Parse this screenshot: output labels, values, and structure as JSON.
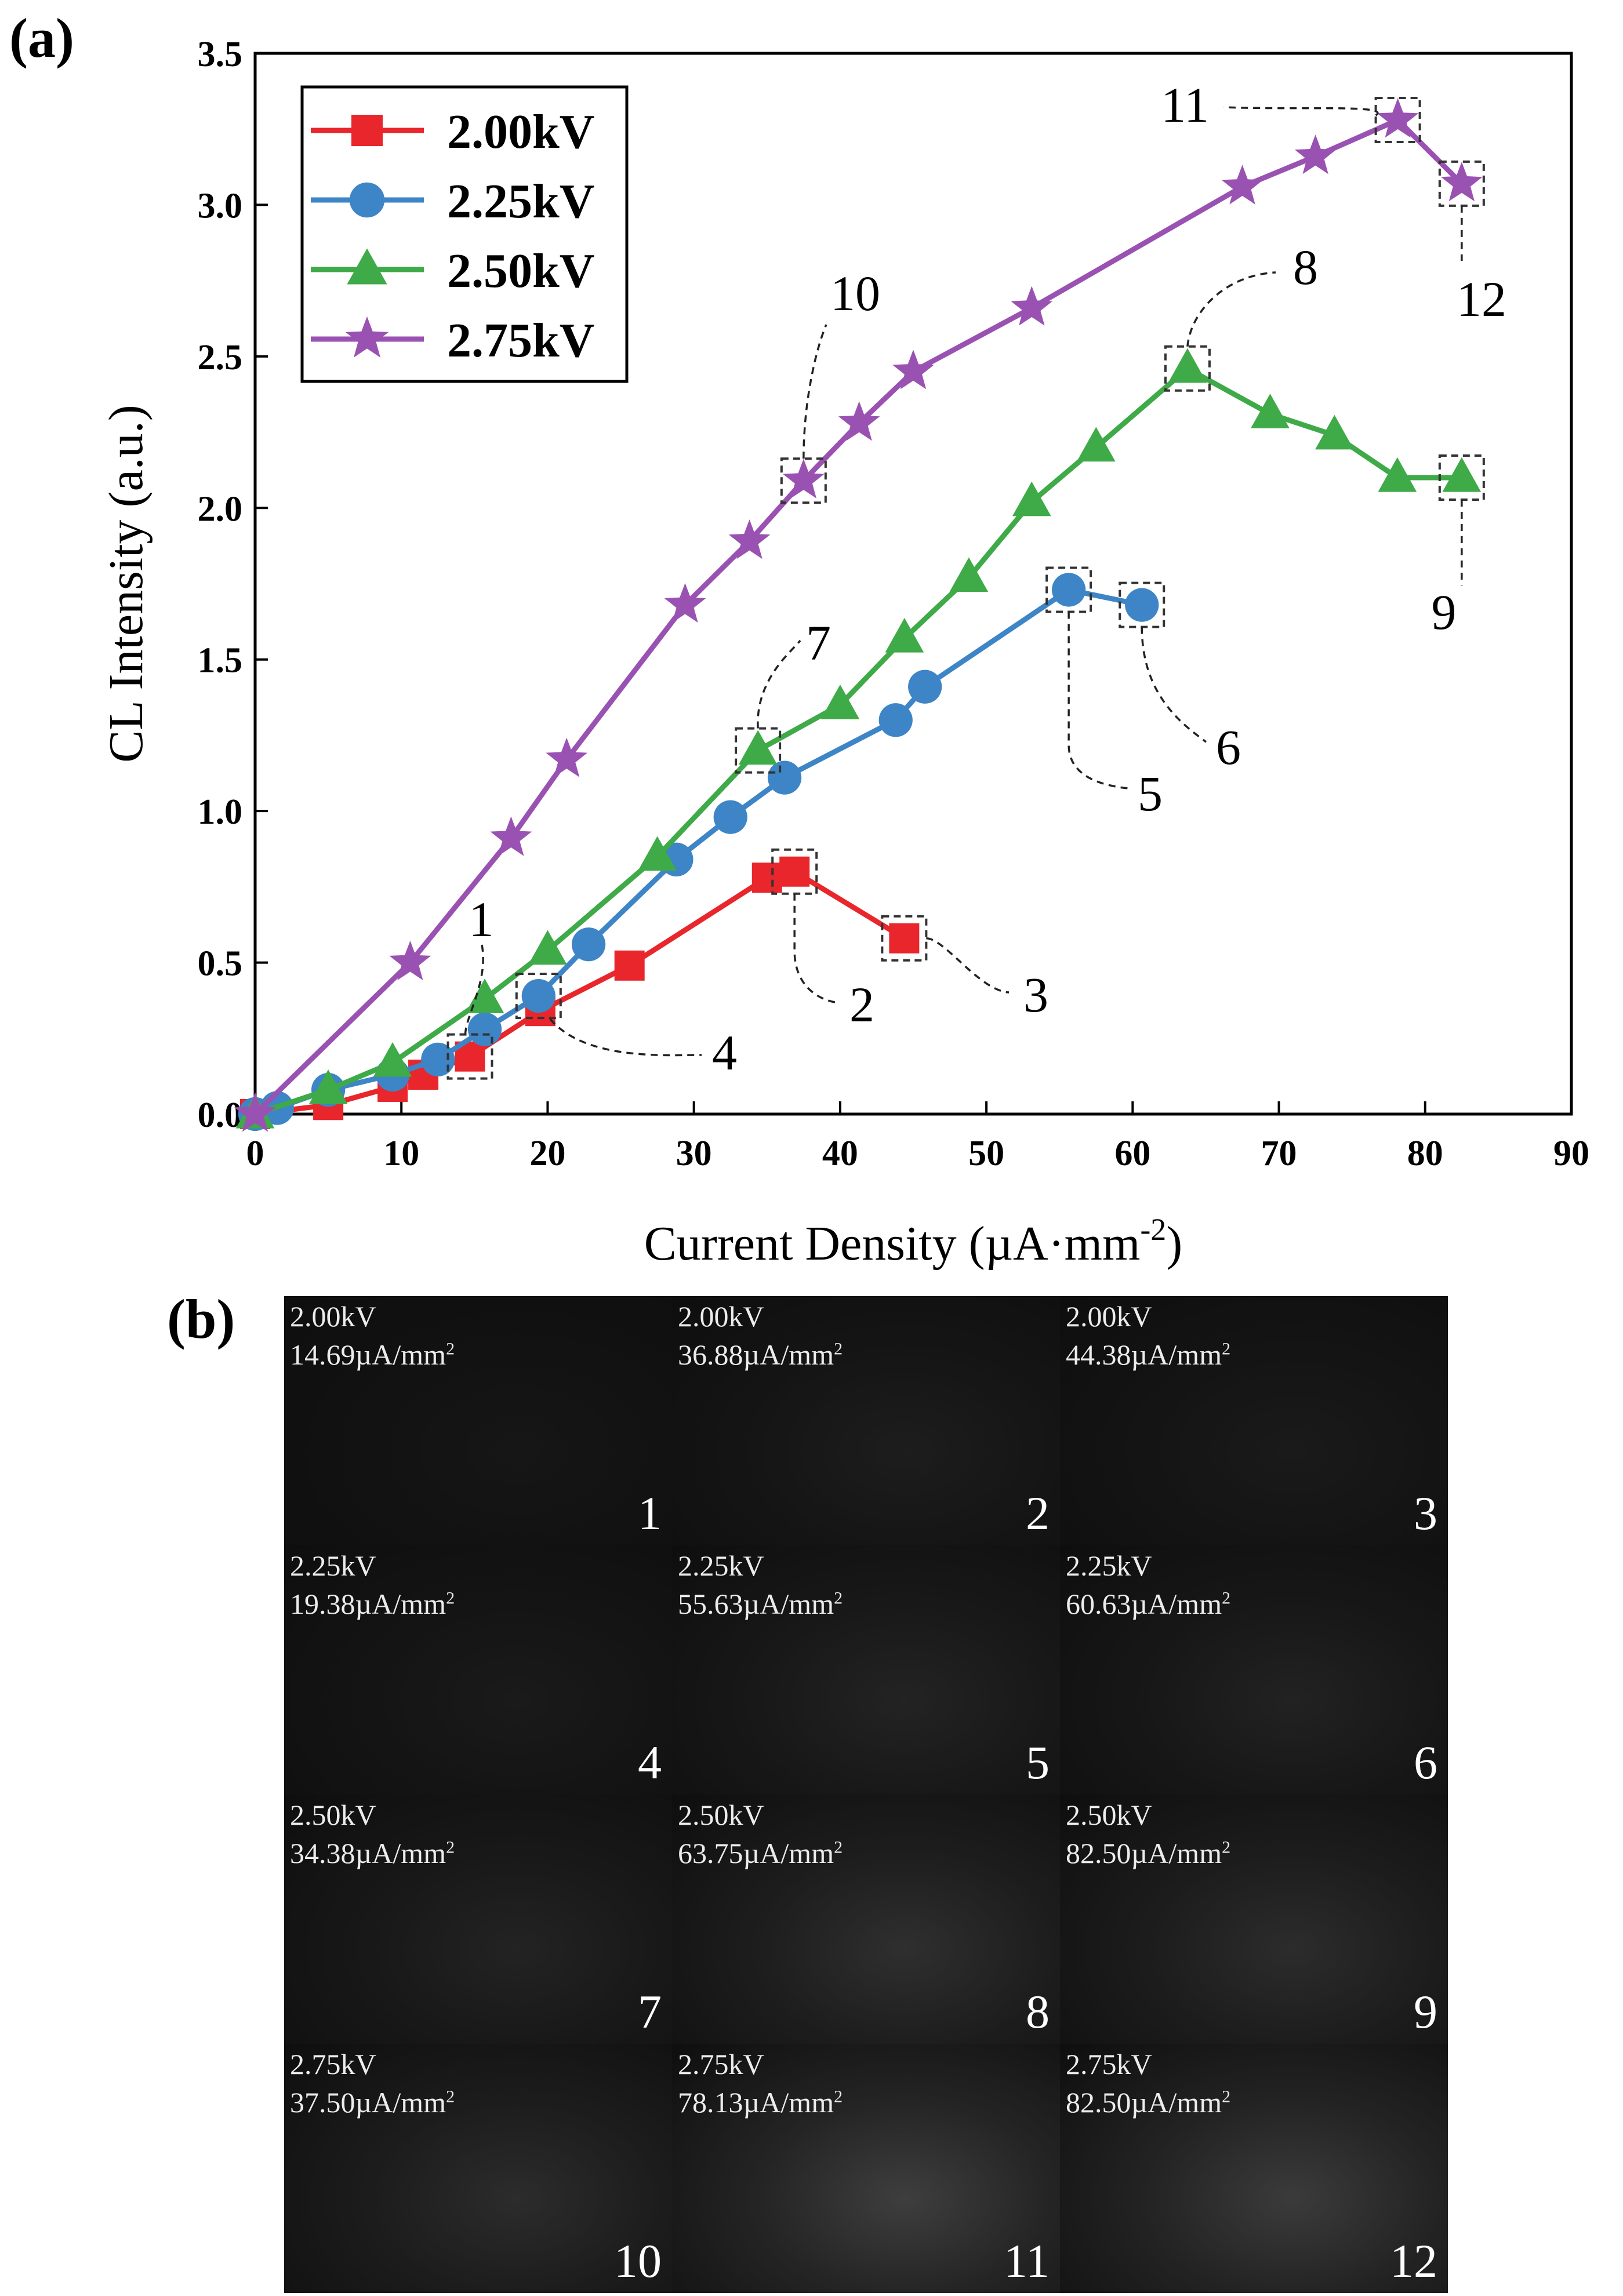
{
  "panel_a_label": "(a)",
  "panel_b_label": "(b)",
  "chart_data": {
    "type": "line",
    "xlabel": "Current Density (µA·mm",
    "xlabel_sup": "-2",
    "xlabel_close": ")",
    "ylabel": "CL Intensity (a.u.)",
    "xlim": [
      0,
      90
    ],
    "ylim": [
      0,
      3.5
    ],
    "xticks": [
      "0",
      "10",
      "20",
      "30",
      "40",
      "50",
      "60",
      "70",
      "80",
      "90"
    ],
    "yticks": [
      "0.0",
      "0.5",
      "1.0",
      "1.5",
      "2.0",
      "2.5",
      "3.0",
      "3.5"
    ],
    "legend_position": "top-left",
    "series": [
      {
        "name": "2.00kV",
        "color": "#e8262b",
        "marker": "square",
        "x": [
          0,
          5,
          9.4,
          11.5,
          14.69,
          19.5,
          25.6,
          35,
          36.88,
          44.38
        ],
        "y": [
          0,
          0.03,
          0.09,
          0.13,
          0.19,
          0.34,
          0.49,
          0.78,
          0.8,
          0.58
        ]
      },
      {
        "name": "2.25kV",
        "color": "#3d85c6",
        "marker": "circle",
        "x": [
          0,
          1.5,
          5,
          9.4,
          12.5,
          15.7,
          19.38,
          22.8,
          28.8,
          32.5,
          36.2,
          43.8,
          45.8,
          55.63,
          60.63
        ],
        "y": [
          0,
          0.02,
          0.08,
          0.13,
          0.18,
          0.28,
          0.39,
          0.56,
          0.84,
          0.98,
          1.11,
          1.3,
          1.41,
          1.73,
          1.68
        ]
      },
      {
        "name": "2.50kV",
        "color": "#3faa48",
        "marker": "triangle",
        "x": [
          0,
          5,
          9.4,
          15.7,
          20,
          27.5,
          34.38,
          40.0,
          44.4,
          48.8,
          53.1,
          57.5,
          63.75,
          69.4,
          73.8,
          78.1,
          82.5
        ],
        "y": [
          0,
          0.08,
          0.17,
          0.38,
          0.54,
          0.85,
          1.2,
          1.35,
          1.57,
          1.77,
          2.02,
          2.2,
          2.46,
          2.31,
          2.24,
          2.1,
          2.1
        ]
      },
      {
        "name": "2.75kV",
        "color": "#9a52b2",
        "marker": "star",
        "x": [
          0,
          10.6,
          17.5,
          21.3,
          29.4,
          33.8,
          37.5,
          41.3,
          45.0,
          53.1,
          67.5,
          72.5,
          78.13,
          82.5
        ],
        "y": [
          0,
          0.5,
          0.91,
          1.17,
          1.68,
          1.89,
          2.09,
          2.28,
          2.45,
          2.66,
          3.06,
          3.16,
          3.28,
          3.07
        ]
      }
    ],
    "annotations": [
      {
        "label": "1",
        "x": 14.69,
        "y": 0.19
      },
      {
        "label": "2",
        "x": 36.88,
        "y": 0.8
      },
      {
        "label": "3",
        "x": 44.38,
        "y": 0.58
      },
      {
        "label": "4",
        "x": 19.38,
        "y": 0.39
      },
      {
        "label": "5",
        "x": 55.63,
        "y": 1.73
      },
      {
        "label": "6",
        "x": 60.63,
        "y": 1.68
      },
      {
        "label": "7",
        "x": 34.38,
        "y": 1.2
      },
      {
        "label": "8",
        "x": 63.75,
        "y": 2.46
      },
      {
        "label": "9",
        "x": 82.5,
        "y": 2.1
      },
      {
        "label": "10",
        "x": 37.5,
        "y": 2.09
      },
      {
        "label": "11",
        "x": 78.13,
        "y": 3.28
      },
      {
        "label": "12",
        "x": 82.5,
        "y": 3.07
      }
    ]
  },
  "cl_images": [
    {
      "voltage": "2.00kV",
      "density": "14.69µA/mm",
      "unit_sup": "2",
      "number": "1",
      "brightness": 0.05
    },
    {
      "voltage": "2.00kV",
      "density": "36.88µA/mm",
      "unit_sup": "2",
      "number": "2",
      "brightness": 0.1
    },
    {
      "voltage": "2.00kV",
      "density": "44.38µA/mm",
      "unit_sup": "2",
      "number": "3",
      "brightness": 0.08
    },
    {
      "voltage": "2.25kV",
      "density": "19.38µA/mm",
      "unit_sup": "2",
      "number": "4",
      "brightness": 0.08
    },
    {
      "voltage": "2.25kV",
      "density": "55.63µA/mm",
      "unit_sup": "2",
      "number": "5",
      "brightness": 0.14
    },
    {
      "voltage": "2.25kV",
      "density": "60.63µA/mm",
      "unit_sup": "2",
      "number": "6",
      "brightness": 0.13
    },
    {
      "voltage": "2.50kV",
      "density": "34.38µA/mm",
      "unit_sup": "2",
      "number": "7",
      "brightness": 0.14
    },
    {
      "voltage": "2.50kV",
      "density": "63.75µA/mm",
      "unit_sup": "2",
      "number": "8",
      "brightness": 0.22
    },
    {
      "voltage": "2.50kV",
      "density": "82.50µA/mm",
      "unit_sup": "2",
      "number": "9",
      "brightness": 0.2
    },
    {
      "voltage": "2.75kV",
      "density": "37.50µA/mm",
      "unit_sup": "2",
      "number": "10",
      "brightness": 0.2
    },
    {
      "voltage": "2.75kV",
      "density": "78.13µA/mm",
      "unit_sup": "2",
      "number": "11",
      "brightness": 0.32
    },
    {
      "voltage": "2.75kV",
      "density": "82.50µA/mm",
      "unit_sup": "2",
      "number": "12",
      "brightness": 0.3
    }
  ]
}
